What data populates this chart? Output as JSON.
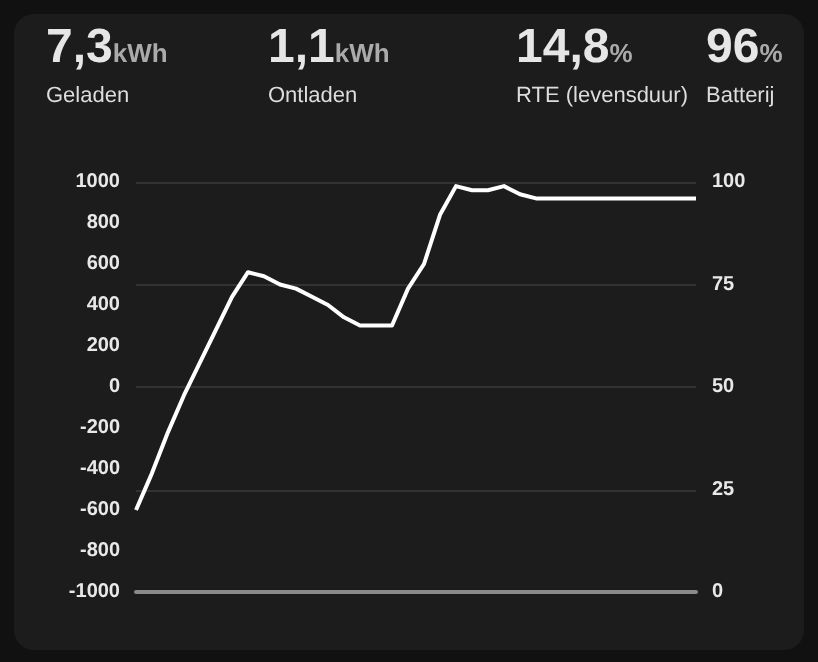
{
  "chart_data": {
    "type": "line",
    "annotations": [
      "7,3",
      "kWh",
      "Geladen",
      "1,1",
      "kWh",
      "Ontladen",
      "14,8",
      "%",
      "RTE (levensduur)",
      "96",
      "%",
      "Batterij"
    ],
    "categories": [
      null,
      null,
      null,
      null,
      null,
      null,
      null,
      null,
      null,
      null,
      null,
      null,
      null,
      null,
      null,
      null,
      null,
      null,
      null,
      null,
      null,
      null,
      null,
      null,
      null,
      null,
      null,
      null,
      null,
      null,
      null,
      null,
      null,
      null,
      null,
      null
    ],
    "series": [
      {
        "color": "#ffffff",
        "axis": "y2",
        "values": [
          20,
          29,
          39,
          48,
          56,
          64,
          72,
          78,
          77,
          75,
          74,
          72,
          70,
          67,
          65,
          65,
          65,
          74,
          80,
          92,
          99,
          98,
          98,
          99,
          97,
          96,
          96,
          96,
          96,
          96,
          96,
          96,
          96,
          96,
          96,
          96
        ]
      }
    ],
    "ylim": [
      -1000,
      1000
    ],
    "yticks": [
      -1000,
      -800,
      -600,
      -400,
      -200,
      0,
      200,
      400,
      600,
      800,
      1000
    ],
    "y2lim": [
      0,
      100
    ],
    "y2ticks": [
      0,
      25,
      50,
      75,
      100
    ],
    "grid": true,
    "marker": "none",
    "line_style": "solid"
  }
}
